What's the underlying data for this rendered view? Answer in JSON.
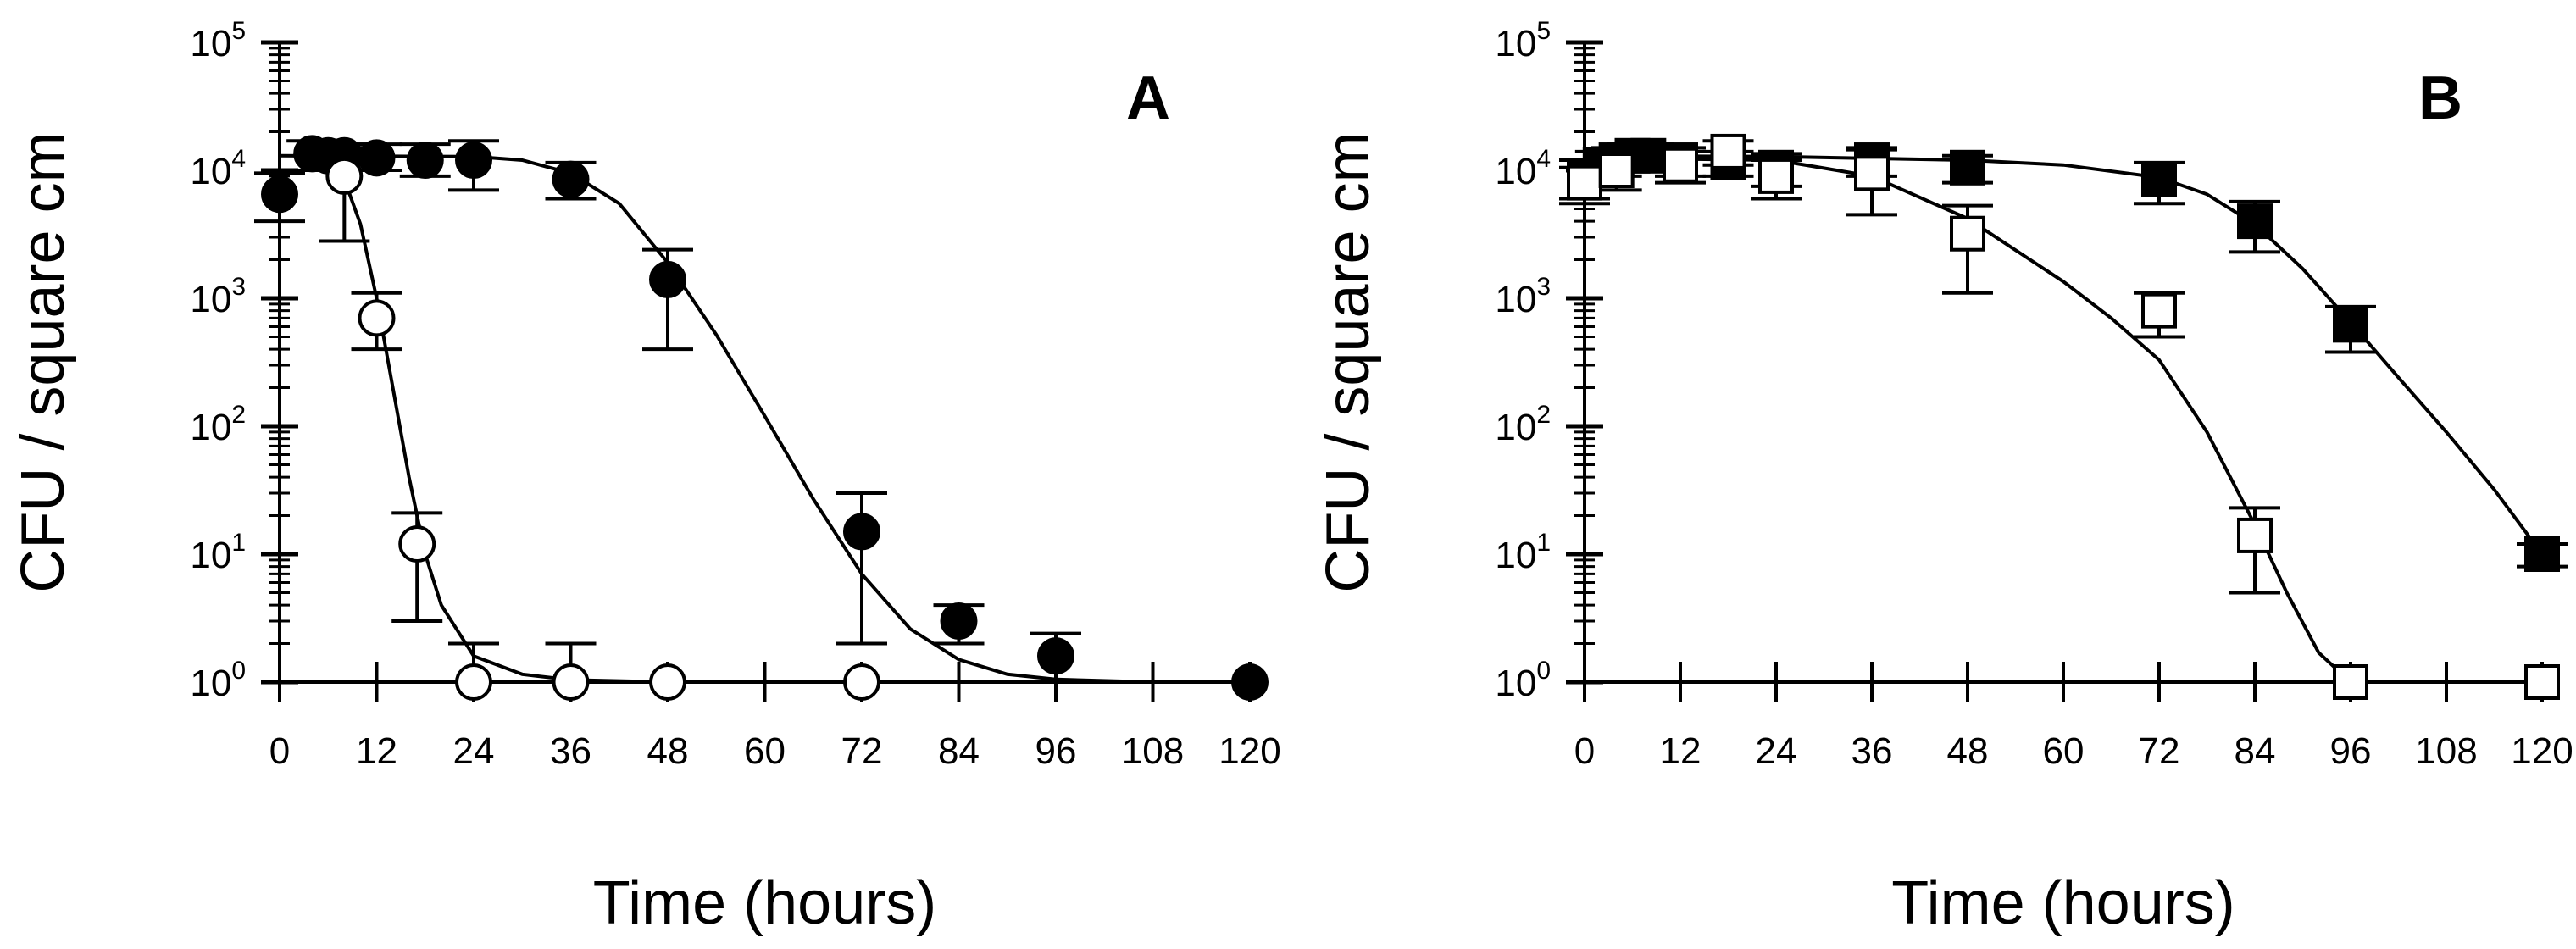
{
  "chart_data": [
    {
      "type": "scatter",
      "panel_label": "A",
      "xlabel": "Time (hours)",
      "ylabel": "CFU / square cm",
      "xlim": [
        0,
        120
      ],
      "ylim": [
        1,
        100000
      ],
      "yscale": "log",
      "xticks": [
        "0",
        "12",
        "24",
        "36",
        "48",
        "60",
        "72",
        "84",
        "96",
        "108",
        "120"
      ],
      "yticks": [
        {
          "base": "10",
          "exp": "0"
        },
        {
          "base": "10",
          "exp": "1"
        },
        {
          "base": "10",
          "exp": "2"
        },
        {
          "base": "10",
          "exp": "3"
        },
        {
          "base": "10",
          "exp": "4"
        },
        {
          "base": "10",
          "exp": "5"
        }
      ],
      "grid": false,
      "legend": false,
      "series": [
        {
          "marker": "circle-filled",
          "color": "#000000",
          "points": [
            {
              "x": 0,
              "y": 6500,
              "err_low": 4000,
              "err_high": 9500
            },
            {
              "x": 4,
              "y": 13500,
              "err_low": 10000,
              "err_high": 17000
            },
            {
              "x": 6,
              "y": 13000,
              "err_low": 10000,
              "err_high": 17000
            },
            {
              "x": 8,
              "y": 13000,
              "err_low": 10000,
              "err_high": 16000
            },
            {
              "x": 12,
              "y": 12500,
              "err_low": 10000,
              "err_high": 16000
            },
            {
              "x": 18,
              "y": 12000,
              "err_low": 9000,
              "err_high": 16000
            },
            {
              "x": 24,
              "y": 12000,
              "err_low": 7000,
              "err_high": 17000
            },
            {
              "x": 36,
              "y": 8500,
              "err_low": 6000,
              "err_high": 11500
            },
            {
              "x": 48,
              "y": 1400,
              "err_low": 400,
              "err_high": 2400
            },
            {
              "x": 72,
              "y": 15,
              "err_low": 2,
              "err_high": 30
            },
            {
              "x": 84,
              "y": 3,
              "err_low": 2,
              "err_high": 4
            },
            {
              "x": 96,
              "y": 1.6,
              "err_low": 1,
              "err_high": 2.4
            },
            {
              "x": 120,
              "y": 1,
              "err_low": 1,
              "err_high": 1
            }
          ],
          "fit": [
            [
              0,
              13000
            ],
            [
              24,
              12800
            ],
            [
              30,
              12000
            ],
            [
              36,
              9500
            ],
            [
              42,
              5500
            ],
            [
              48,
              1900
            ],
            [
              54,
              520
            ],
            [
              60,
              120
            ],
            [
              66,
              27
            ],
            [
              72,
              7
            ],
            [
              78,
              2.6
            ],
            [
              84,
              1.5
            ],
            [
              90,
              1.15
            ],
            [
              96,
              1.05
            ],
            [
              108,
              1.0
            ],
            [
              120,
              1.0
            ]
          ]
        },
        {
          "marker": "circle-open",
          "color": "#000000",
          "points": [
            {
              "x": 8,
              "y": 9000,
              "err_low": 2800,
              "err_high": 15000
            },
            {
              "x": 12,
              "y": 700,
              "err_low": 400,
              "err_high": 1100
            },
            {
              "x": 17,
              "y": 12,
              "err_low": 3,
              "err_high": 21
            },
            {
              "x": 24,
              "y": 1,
              "err_low": 1,
              "err_high": 2
            },
            {
              "x": 36,
              "y": 1,
              "err_low": 1,
              "err_high": 2
            },
            {
              "x": 48,
              "y": 1,
              "err_low": 1,
              "err_high": 1
            },
            {
              "x": 72,
              "y": 1,
              "err_low": 1,
              "err_high": 1
            }
          ],
          "fit": [
            [
              5,
              12000
            ],
            [
              8,
              8500
            ],
            [
              10,
              3800
            ],
            [
              12,
              1000
            ],
            [
              14,
              200
            ],
            [
              16,
              40
            ],
            [
              18,
              10
            ],
            [
              20,
              4
            ],
            [
              24,
              1.6
            ],
            [
              30,
              1.15
            ],
            [
              36,
              1.04
            ],
            [
              48,
              1.0
            ],
            [
              72,
              1.0
            ]
          ]
        }
      ]
    },
    {
      "type": "scatter",
      "panel_label": "B",
      "xlabel": "Time (hours)",
      "ylabel": "CFU / square cm",
      "xlim": [
        0,
        120
      ],
      "ylim": [
        1,
        100000
      ],
      "yscale": "log",
      "xticks": [
        "0",
        "12",
        "24",
        "36",
        "48",
        "60",
        "72",
        "84",
        "96",
        "108",
        "120"
      ],
      "yticks": [
        {
          "base": "10",
          "exp": "0"
        },
        {
          "base": "10",
          "exp": "1"
        },
        {
          "base": "10",
          "exp": "2"
        },
        {
          "base": "10",
          "exp": "3"
        },
        {
          "base": "10",
          "exp": "4"
        },
        {
          "base": "10",
          "exp": "5"
        }
      ],
      "grid": false,
      "legend": false,
      "series": [
        {
          "marker": "square-filled",
          "color": "#000000",
          "points": [
            {
              "x": 0,
              "y": 9000,
              "err_low": 6000,
              "err_high": 12000
            },
            {
              "x": 2,
              "y": 11000,
              "err_low": 8000,
              "err_high": 14000
            },
            {
              "x": 4,
              "y": 12000,
              "err_low": 9000,
              "err_high": 15000
            },
            {
              "x": 6,
              "y": 13000,
              "err_low": 10000,
              "err_high": 16000
            },
            {
              "x": 8,
              "y": 13000,
              "err_low": 10000,
              "err_high": 16000
            },
            {
              "x": 12,
              "y": 12000,
              "err_low": 9000,
              "err_high": 15000
            },
            {
              "x": 18,
              "y": 11500,
              "err_low": 9000,
              "err_high": 14000
            },
            {
              "x": 24,
              "y": 10500,
              "err_low": 7500,
              "err_high": 13500
            },
            {
              "x": 36,
              "y": 12000,
              "err_low": 9000,
              "err_high": 15000
            },
            {
              "x": 48,
              "y": 10500,
              "err_low": 8000,
              "err_high": 13000
            },
            {
              "x": 72,
              "y": 8500,
              "err_low": 5500,
              "err_high": 11500
            },
            {
              "x": 84,
              "y": 4000,
              "err_low": 2300,
              "err_high": 5700
            },
            {
              "x": 96,
              "y": 620,
              "err_low": 380,
              "err_high": 860
            },
            {
              "x": 120,
              "y": 10,
              "err_low": 8,
              "err_high": 12
            }
          ],
          "fit": [
            [
              0,
              13000
            ],
            [
              24,
              12800
            ],
            [
              48,
              12000
            ],
            [
              60,
              11000
            ],
            [
              72,
              8800
            ],
            [
              78,
              6500
            ],
            [
              84,
              3800
            ],
            [
              90,
              1700
            ],
            [
              96,
              650
            ],
            [
              102,
              240
            ],
            [
              108,
              90
            ],
            [
              114,
              32
            ],
            [
              120,
              10
            ]
          ]
        },
        {
          "marker": "square-open",
          "color": "#000000",
          "points": [
            {
              "x": 0,
              "y": 8000,
              "err_low": 5500,
              "err_high": 10500
            },
            {
              "x": 4,
              "y": 10000,
              "err_low": 7000,
              "err_high": 13000
            },
            {
              "x": 12,
              "y": 11000,
              "err_low": 8000,
              "err_high": 14000
            },
            {
              "x": 18,
              "y": 14000,
              "err_low": 11000,
              "err_high": 17000
            },
            {
              "x": 24,
              "y": 9000,
              "err_low": 6000,
              "err_high": 12000
            },
            {
              "x": 36,
              "y": 9500,
              "err_low": 4500,
              "err_high": 14500
            },
            {
              "x": 48,
              "y": 3200,
              "err_low": 1100,
              "err_high": 5300
            },
            {
              "x": 72,
              "y": 800,
              "err_low": 500,
              "err_high": 1100
            },
            {
              "x": 84,
              "y": 14,
              "err_low": 5,
              "err_high": 23
            },
            {
              "x": 96,
              "y": 1,
              "err_low": 1,
              "err_high": 1
            },
            {
              "x": 120,
              "y": 1,
              "err_low": 1,
              "err_high": 1
            }
          ],
          "fit": [
            [
              0,
              12500
            ],
            [
              24,
              12000
            ],
            [
              36,
              9000
            ],
            [
              48,
              4200
            ],
            [
              60,
              1350
            ],
            [
              66,
              700
            ],
            [
              72,
              330
            ],
            [
              78,
              90
            ],
            [
              84,
              17
            ],
            [
              88,
              5
            ],
            [
              92,
              1.7
            ],
            [
              96,
              1.0
            ],
            [
              120,
              1.0
            ]
          ]
        }
      ]
    }
  ]
}
